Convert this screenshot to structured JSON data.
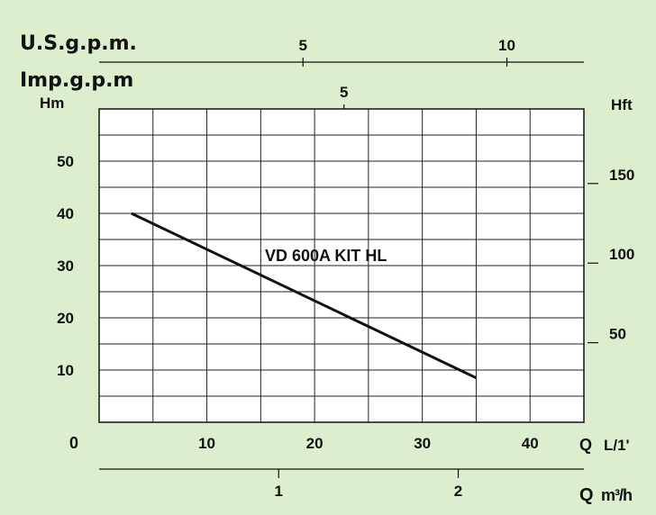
{
  "chart_data": {
    "type": "line",
    "title": "VD 600A KIT HL",
    "bottom_axis": {
      "origin_label": "0",
      "label_q": "Q",
      "label_unit": "L/1'",
      "range": [
        0,
        45
      ],
      "ticks": [
        {
          "value": 10,
          "label": "10"
        },
        {
          "value": 20,
          "label": "20"
        },
        {
          "value": 30,
          "label": "30"
        },
        {
          "value": 40,
          "label": "40"
        }
      ]
    },
    "left_axis": {
      "label": "Hm",
      "range": [
        0,
        60
      ],
      "ticks": [
        {
          "value": 10,
          "label": "10"
        },
        {
          "value": 20,
          "label": "20"
        },
        {
          "value": 30,
          "label": "30"
        },
        {
          "value": 40,
          "label": "40"
        },
        {
          "value": 50,
          "label": "50"
        }
      ]
    },
    "right_axis": {
      "label": "Hft",
      "unit_factor_per_hm": 3.2808,
      "ticks": [
        {
          "value": 50,
          "label": "50"
        },
        {
          "value": 100,
          "label": "100"
        },
        {
          "value": 150,
          "label": "150"
        }
      ]
    },
    "usgpm_axis": {
      "label": "U.S.g.p.m.",
      "lpm_per_unit": 3.785,
      "ticks": [
        {
          "value": 5,
          "label": "5"
        },
        {
          "value": 10,
          "label": "10"
        }
      ]
    },
    "impgpm_axis": {
      "label": "Imp.g.p.m",
      "lpm_per_unit": 4.546,
      "ticks": [
        {
          "value": 5,
          "label": "5"
        }
      ]
    },
    "m3h_axis": {
      "label_q": "Q",
      "label_unit": "m³/h",
      "lpm_per_unit": 16.667,
      "ticks": [
        {
          "value": 1,
          "label": "1"
        },
        {
          "value": 2,
          "label": "2"
        }
      ]
    },
    "grid": true,
    "grid_x_step": 5,
    "grid_y_step": 5,
    "series": [
      {
        "name": "VD 600A KIT HL",
        "x": [
          3,
          35
        ],
        "y": [
          40,
          8.5
        ]
      }
    ],
    "colors": {
      "background": "#ddeecf",
      "plot": "#ffffff",
      "line": "#111111"
    }
  }
}
